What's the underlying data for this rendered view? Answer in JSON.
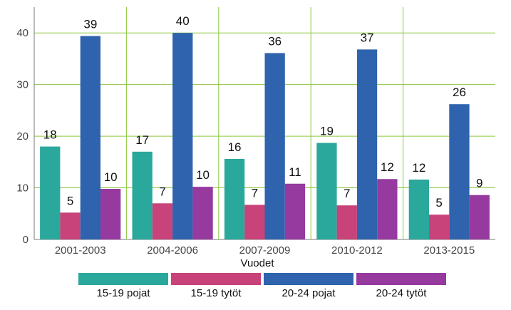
{
  "chart_data": {
    "type": "bar",
    "title": "",
    "xlabel": "Vuodet",
    "ylabel": "",
    "ylim": [
      0,
      45
    ],
    "yticks": [
      0,
      10,
      20,
      30,
      40
    ],
    "grid": true,
    "legend_position": "bottom",
    "categories": [
      "2001-2003",
      "2004-2006",
      "2007-2009",
      "2010-2012",
      "2013-2015"
    ],
    "series": [
      {
        "name": "15-19 pojat",
        "color": "#2aa89c",
        "values": [
          18,
          17,
          15.6,
          18.7,
          11.6
        ],
        "labels": [
          "18",
          "17",
          "16",
          "19",
          "12"
        ]
      },
      {
        "name": "15-19 tytöt",
        "color": "#c8437a",
        "values": [
          5.2,
          7,
          6.7,
          6.6,
          4.8
        ],
        "labels": [
          "5",
          "7",
          "7",
          "7",
          "5"
        ]
      },
      {
        "name": "20-24 pojat",
        "color": "#2f63ad",
        "values": [
          39.4,
          40,
          36.1,
          36.8,
          26.2
        ],
        "labels": [
          "39",
          "40",
          "36",
          "37",
          "26"
        ]
      },
      {
        "name": "20-24 tytöt",
        "color": "#963aa0",
        "values": [
          9.8,
          10.2,
          10.8,
          11.7,
          8.6
        ],
        "labels": [
          "10",
          "10",
          "11",
          "12",
          "9"
        ]
      }
    ]
  }
}
